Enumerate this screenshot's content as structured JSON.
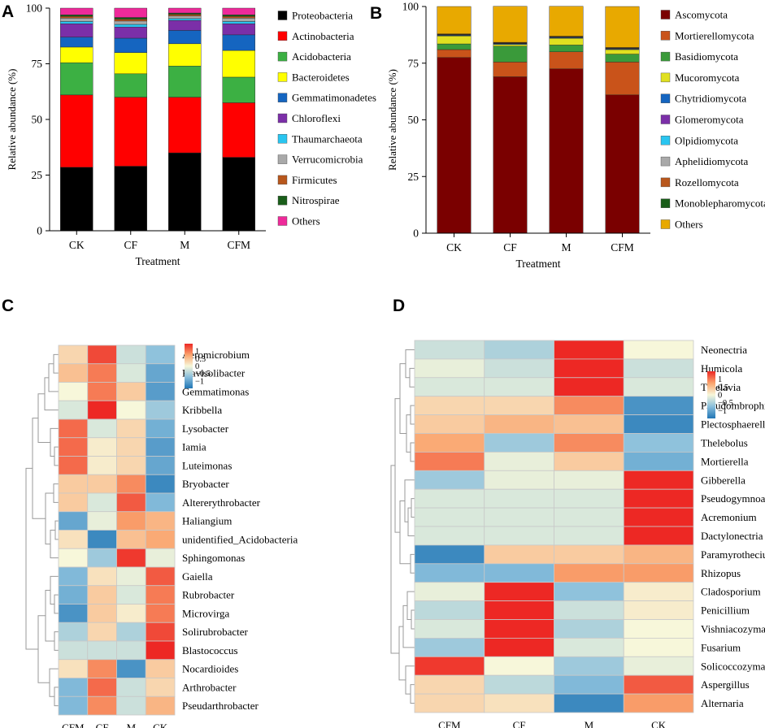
{
  "chart_data": [
    {
      "panel": "A",
      "type": "bar",
      "stacked": true,
      "xlabel": "Treatment",
      "ylabel": "Relative abundance (%)",
      "ylim": [
        0,
        100
      ],
      "yticks": [
        0,
        25,
        50,
        75,
        100
      ],
      "categories": [
        "CK",
        "CF",
        "M",
        "CFM"
      ],
      "legend_position": "right",
      "series": [
        {
          "name": "Proteobacteria",
          "color": "#000000",
          "values": [
            28.5,
            29.0,
            35.0,
            33.0
          ]
        },
        {
          "name": "Actinobacteria",
          "color": "#ff0000",
          "values": [
            32.5,
            31.0,
            25.0,
            24.5
          ]
        },
        {
          "name": "Acidobacteria",
          "color": "#3cb043",
          "values": [
            14.5,
            10.5,
            14.0,
            11.5
          ]
        },
        {
          "name": "Bacteroidetes",
          "color": "#ffff00",
          "values": [
            7.0,
            9.5,
            10.0,
            12.0
          ]
        },
        {
          "name": "Gemmatimonadetes",
          "color": "#1565c0",
          "values": [
            4.5,
            6.5,
            6.0,
            7.0
          ]
        },
        {
          "name": "Chloroflexi",
          "color": "#7b2fa8",
          "values": [
            6.0,
            5.0,
            4.5,
            5.0
          ]
        },
        {
          "name": "Thaumarchaeota",
          "color": "#29c5f0",
          "values": [
            1.0,
            1.2,
            0.8,
            1.0
          ]
        },
        {
          "name": "Verrucomicrobia",
          "color": "#a9a9a9",
          "values": [
            1.5,
            1.5,
            1.2,
            1.5
          ]
        },
        {
          "name": "Firmicutes",
          "color": "#b8571c",
          "values": [
            0.8,
            0.8,
            0.7,
            0.8
          ]
        },
        {
          "name": "Nitrospirae",
          "color": "#1a5e1a",
          "values": [
            0.7,
            0.8,
            0.6,
            0.7
          ]
        },
        {
          "name": "Others",
          "color": "#ee2a9a",
          "values": [
            3.0,
            4.2,
            2.2,
            3.0
          ]
        }
      ]
    },
    {
      "panel": "B",
      "type": "bar",
      "stacked": true,
      "xlabel": "Treatment",
      "ylabel": "Relative abundance (%)",
      "ylim": [
        0,
        100
      ],
      "yticks": [
        0,
        25,
        50,
        75,
        100
      ],
      "categories": [
        "CK",
        "CF",
        "M",
        "CFM"
      ],
      "legend_position": "right",
      "series": [
        {
          "name": "Ascomycota",
          "color": "#7a0000",
          "values": [
            77.5,
            69.0,
            72.5,
            61.0
          ]
        },
        {
          "name": "Mortierellomycota",
          "color": "#c9531a",
          "values": [
            3.5,
            6.5,
            7.5,
            14.5
          ]
        },
        {
          "name": "Basidiomycota",
          "color": "#3a9a3a",
          "values": [
            2.5,
            7.0,
            3.0,
            3.5
          ]
        },
        {
          "name": "Mucoromycota",
          "color": "#e0e020",
          "values": [
            3.5,
            0.8,
            3.0,
            2.0
          ]
        },
        {
          "name": "Chytridiomycota",
          "color": "#1565c0",
          "values": [
            0.3,
            0.3,
            0.3,
            0.3
          ]
        },
        {
          "name": "Glomeromycota",
          "color": "#7b2fa8",
          "values": [
            0.1,
            0.1,
            0.1,
            0.1
          ]
        },
        {
          "name": "Olpidiomycota",
          "color": "#29c5f0",
          "values": [
            0.1,
            0.1,
            0.1,
            0.1
          ]
        },
        {
          "name": "Aphelidiomycota",
          "color": "#a9a9a9",
          "values": [
            0.1,
            0.1,
            0.1,
            0.1
          ]
        },
        {
          "name": "Rozellomycota",
          "color": "#b8571c",
          "values": [
            0.2,
            0.2,
            0.2,
            0.2
          ]
        },
        {
          "name": "Monoblepharomycota",
          "color": "#1a5e1a",
          "values": [
            0.1,
            0.1,
            0.1,
            0.1
          ]
        },
        {
          "name": "Others",
          "color": "#e8a900",
          "values": [
            12.1,
            15.9,
            13.2,
            18.1
          ]
        }
      ]
    },
    {
      "panel": "C",
      "type": "heatmap",
      "columns": [
        "CFM",
        "CF",
        "M",
        "CK"
      ],
      "rows": [
        "Aeromicrobium",
        "Flavisolibacter",
        "Gemmatimonas",
        "Kribbella",
        "Lysobacter",
        "Iamia",
        "Luteimonas",
        "Bryobacter",
        "Altererythrobacter",
        "Haliangium",
        "unidentified_Acidobacteria",
        "Sphingomonas",
        "Gaiella",
        "Rubrobacter",
        "Microvirga",
        "Solirubrobacter",
        "Blastococcus",
        "Nocardioides",
        "Arthrobacter",
        "Pseudarthrobacter"
      ],
      "values": [
        [
          0.3,
          1.3,
          -0.3,
          -0.7
        ],
        [
          0.5,
          1.0,
          -0.2,
          -1.0
        ],
        [
          0.0,
          1.0,
          0.4,
          -1.1
        ],
        [
          -0.2,
          1.5,
          0.0,
          -0.6
        ],
        [
          1.1,
          -0.2,
          0.3,
          -0.9
        ],
        [
          1.1,
          0.1,
          0.3,
          -1.1
        ],
        [
          1.1,
          0.1,
          0.3,
          -1.0
        ],
        [
          0.4,
          0.4,
          0.9,
          -1.3
        ],
        [
          0.4,
          -0.2,
          1.2,
          -0.8
        ],
        [
          -1.0,
          -0.1,
          0.8,
          0.6
        ],
        [
          0.2,
          -1.3,
          0.5,
          0.7
        ],
        [
          0.0,
          -0.6,
          1.4,
          -0.1
        ],
        [
          -0.8,
          0.2,
          -0.1,
          1.2
        ],
        [
          -0.9,
          0.4,
          -0.2,
          1.0
        ],
        [
          -1.2,
          0.4,
          0.1,
          1.0
        ],
        [
          -0.5,
          0.3,
          -0.5,
          1.3
        ],
        [
          -0.3,
          -0.3,
          -0.3,
          1.5
        ],
        [
          0.2,
          0.9,
          -1.2,
          0.4
        ],
        [
          -0.8,
          1.1,
          -0.3,
          0.3
        ],
        [
          -0.8,
          0.9,
          -0.3,
          0.6
        ]
      ],
      "colorbar_ticks": [
        "1",
        "0.5",
        "0",
        "−0.5",
        "−1"
      ],
      "colorbar_range": [
        -1.5,
        1.5
      ]
    },
    {
      "panel": "D",
      "type": "heatmap",
      "columns": [
        "CFM",
        "CF",
        "M",
        "CK"
      ],
      "rows": [
        "Neonectria",
        "Humicola",
        "Thielavia",
        "Pseudombrophila",
        "Plectosphaerella",
        "Thelebolus",
        "Mortierella",
        "Gibberella",
        "Pseudogymnoascus",
        "Acremonium",
        "Dactylonectria",
        "Paramyrothecium",
        "Rhizopus",
        "Cladosporium",
        "Penicillium",
        "Vishniacozyma",
        "Fusarium",
        "Solicoccozyma",
        "Aspergillus",
        "Alternaria"
      ],
      "values": [
        [
          -0.3,
          -0.5,
          1.5,
          0.0
        ],
        [
          -0.1,
          -0.3,
          1.5,
          -0.3
        ],
        [
          -0.2,
          -0.2,
          1.5,
          -0.2
        ],
        [
          0.3,
          0.3,
          0.9,
          -1.2
        ],
        [
          0.4,
          0.6,
          0.5,
          -1.3
        ],
        [
          0.7,
          -0.6,
          0.9,
          -0.7
        ],
        [
          1.0,
          -0.1,
          0.4,
          -0.9
        ],
        [
          -0.6,
          -0.1,
          -0.1,
          1.5
        ],
        [
          -0.2,
          -0.2,
          -0.2,
          1.5
        ],
        [
          -0.2,
          -0.2,
          -0.2,
          1.5
        ],
        [
          -0.2,
          -0.2,
          -0.2,
          1.5
        ],
        [
          -1.3,
          0.4,
          0.4,
          0.6
        ],
        [
          -0.8,
          -0.8,
          0.8,
          0.8
        ],
        [
          -0.1,
          1.5,
          -0.7,
          0.1
        ],
        [
          -0.4,
          1.5,
          -0.3,
          0.1
        ],
        [
          -0.2,
          1.5,
          -0.5,
          0.0
        ],
        [
          -0.6,
          1.5,
          -0.2,
          0.0
        ],
        [
          1.4,
          0.0,
          -0.6,
          -0.1
        ],
        [
          0.3,
          -0.4,
          -0.8,
          1.2
        ],
        [
          0.3,
          0.2,
          -1.3,
          0.8
        ]
      ],
      "colorbar_ticks": [
        "1",
        "0.5",
        "0",
        "−0.5",
        "−1"
      ],
      "colorbar_range": [
        -1.5,
        1.5
      ]
    }
  ],
  "panel_labels": [
    "A",
    "B",
    "C",
    "D"
  ]
}
